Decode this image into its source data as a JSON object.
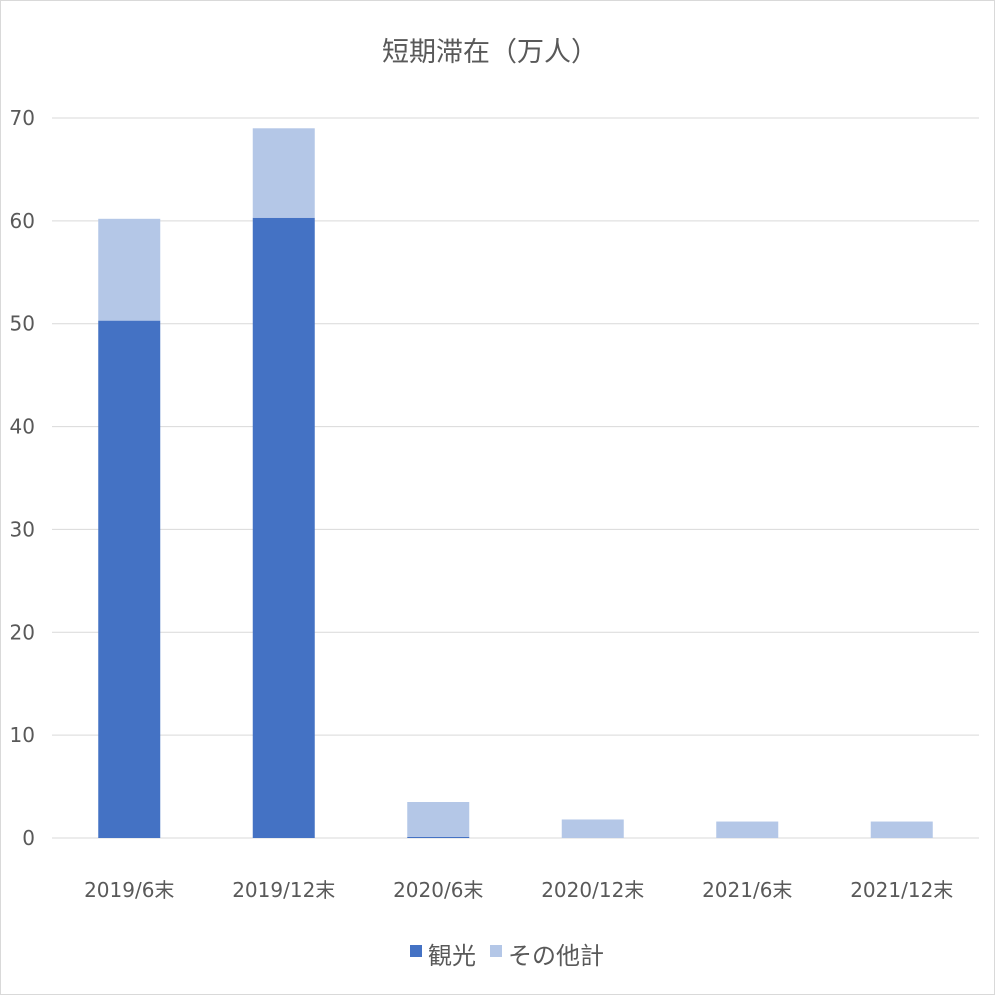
{
  "chart_data": {
    "type": "bar",
    "stacked": true,
    "title": "短期滞在（万人）",
    "xlabel": "",
    "ylabel": "",
    "categories": [
      "2019/6末",
      "2019/12末",
      "2020/6末",
      "2020/12末",
      "2021/6末",
      "2021/12末"
    ],
    "series": [
      {
        "name": "観光",
        "color": "#4472C4",
        "values": [
          50.3,
          60.3,
          0.1,
          0.0,
          0.0,
          0.0
        ]
      },
      {
        "name": "その他計",
        "color": "#B4C7E7",
        "values": [
          9.9,
          8.7,
          3.4,
          1.8,
          1.6,
          1.6
        ]
      }
    ],
    "ylim": [
      0,
      70
    ],
    "yticks": [
      0,
      10,
      20,
      30,
      40,
      50,
      60,
      70
    ],
    "grid": true,
    "legend_position": "bottom",
    "gridline_color": "#d9d9d9",
    "text_color": "#595959"
  }
}
